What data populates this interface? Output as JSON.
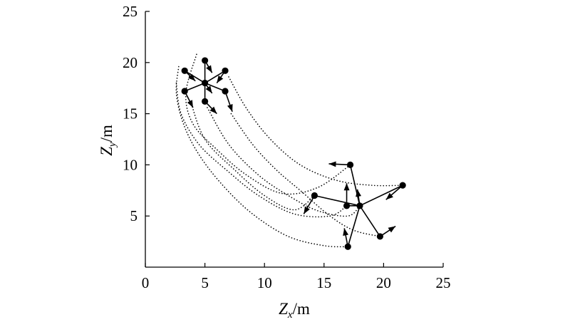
{
  "chart_data": {
    "type": "scatter",
    "title": "",
    "xlabel": {
      "main": "Z",
      "sub": "x",
      "unit": "/m"
    },
    "ylabel": {
      "main": "Z",
      "sub": "y",
      "unit": "/m"
    },
    "xlim": [
      0,
      25
    ],
    "ylim": [
      0,
      25
    ],
    "xticks": [
      0,
      5,
      10,
      15,
      20,
      25
    ],
    "yticks": [
      5,
      10,
      15,
      20,
      25
    ],
    "grid": false,
    "legend": "none",
    "colors": {
      "line": "#000000",
      "point": "#000000"
    },
    "initial_formation": {
      "center": [
        5.0,
        18.0
      ],
      "agents": [
        [
          3.3,
          19.2
        ],
        [
          5.0,
          20.2
        ],
        [
          6.7,
          19.2
        ],
        [
          3.3,
          17.2
        ],
        [
          5.0,
          16.2
        ],
        [
          6.7,
          17.2
        ]
      ],
      "arrows": [
        [
          [
            3.3,
            19.2
          ],
          [
            4.2,
            18.2
          ]
        ],
        [
          [
            5.0,
            20.2
          ],
          [
            5.6,
            19.0
          ]
        ],
        [
          [
            6.7,
            19.2
          ],
          [
            6.0,
            18.0
          ]
        ],
        [
          [
            3.3,
            17.2
          ],
          [
            4.0,
            15.6
          ]
        ],
        [
          [
            5.0,
            16.2
          ],
          [
            6.0,
            15.0
          ]
        ],
        [
          [
            6.7,
            17.2
          ],
          [
            7.3,
            15.2
          ]
        ],
        [
          [
            5.0,
            18.0
          ],
          [
            5.6,
            17.0
          ]
        ]
      ]
    },
    "final_formation": {
      "center": [
        18.0,
        6.0
      ],
      "agents": [
        [
          17.2,
          10.0
        ],
        [
          14.2,
          7.0
        ],
        [
          21.6,
          8.0
        ],
        [
          16.9,
          6.0
        ],
        [
          19.7,
          3.0
        ],
        [
          17.0,
          2.0
        ]
      ],
      "arrows": [
        [
          [
            17.2,
            10.0
          ],
          [
            15.4,
            10.1
          ]
        ],
        [
          [
            14.2,
            7.0
          ],
          [
            13.3,
            5.2
          ]
        ],
        [
          [
            21.6,
            8.0
          ],
          [
            20.2,
            6.6
          ]
        ],
        [
          [
            16.9,
            6.0
          ],
          [
            16.9,
            8.2
          ]
        ],
        [
          [
            19.7,
            3.0
          ],
          [
            21.0,
            4.0
          ]
        ],
        [
          [
            17.0,
            2.0
          ],
          [
            16.7,
            3.8
          ]
        ],
        [
          [
            18.0,
            6.0
          ],
          [
            17.8,
            7.6
          ]
        ]
      ]
    },
    "trajectories": [
      [
        [
          2.8,
          19.6
        ],
        [
          2.6,
          17.0
        ],
        [
          3.2,
          14.0
        ],
        [
          4.5,
          11.0
        ],
        [
          6.5,
          8.0
        ],
        [
          9.0,
          5.2
        ],
        [
          12.0,
          3.0
        ],
        [
          15.0,
          2.1
        ],
        [
          17.0,
          2.0
        ]
      ],
      [
        [
          2.6,
          18.0
        ],
        [
          3.0,
          15.0
        ],
        [
          4.5,
          12.0
        ],
        [
          6.8,
          9.5
        ],
        [
          9.5,
          7.0
        ],
        [
          12.5,
          5.2
        ],
        [
          15.5,
          5.0
        ],
        [
          16.9,
          6.0
        ]
      ],
      [
        [
          4.3,
          20.8
        ],
        [
          3.4,
          17.0
        ],
        [
          4.0,
          14.0
        ],
        [
          6.0,
          11.5
        ],
        [
          8.5,
          9.0
        ],
        [
          11.5,
          7.2
        ],
        [
          14.5,
          7.8
        ],
        [
          17.2,
          10.0
        ]
      ],
      [
        [
          3.8,
          16.2
        ],
        [
          5.0,
          12.5
        ],
        [
          7.5,
          9.5
        ],
        [
          10.0,
          7.0
        ],
        [
          12.5,
          5.6
        ],
        [
          14.2,
          7.0
        ]
      ],
      [
        [
          5.2,
          15.6
        ],
        [
          7.0,
          12.0
        ],
        [
          9.5,
          9.0
        ],
        [
          12.0,
          7.0
        ],
        [
          14.5,
          5.5
        ],
        [
          17.0,
          5.0
        ],
        [
          18.0,
          6.0
        ]
      ],
      [
        [
          7.2,
          15.0
        ],
        [
          9.0,
          12.0
        ],
        [
          11.0,
          9.5
        ],
        [
          13.0,
          7.5
        ],
        [
          15.5,
          5.0
        ],
        [
          17.5,
          3.6
        ],
        [
          19.7,
          3.0
        ]
      ],
      [
        [
          7.0,
          18.6
        ],
        [
          8.5,
          15.5
        ],
        [
          10.5,
          12.5
        ],
        [
          13.0,
          10.0
        ],
        [
          16.0,
          8.5
        ],
        [
          19.0,
          8.0
        ],
        [
          21.6,
          8.0
        ]
      ]
    ]
  }
}
